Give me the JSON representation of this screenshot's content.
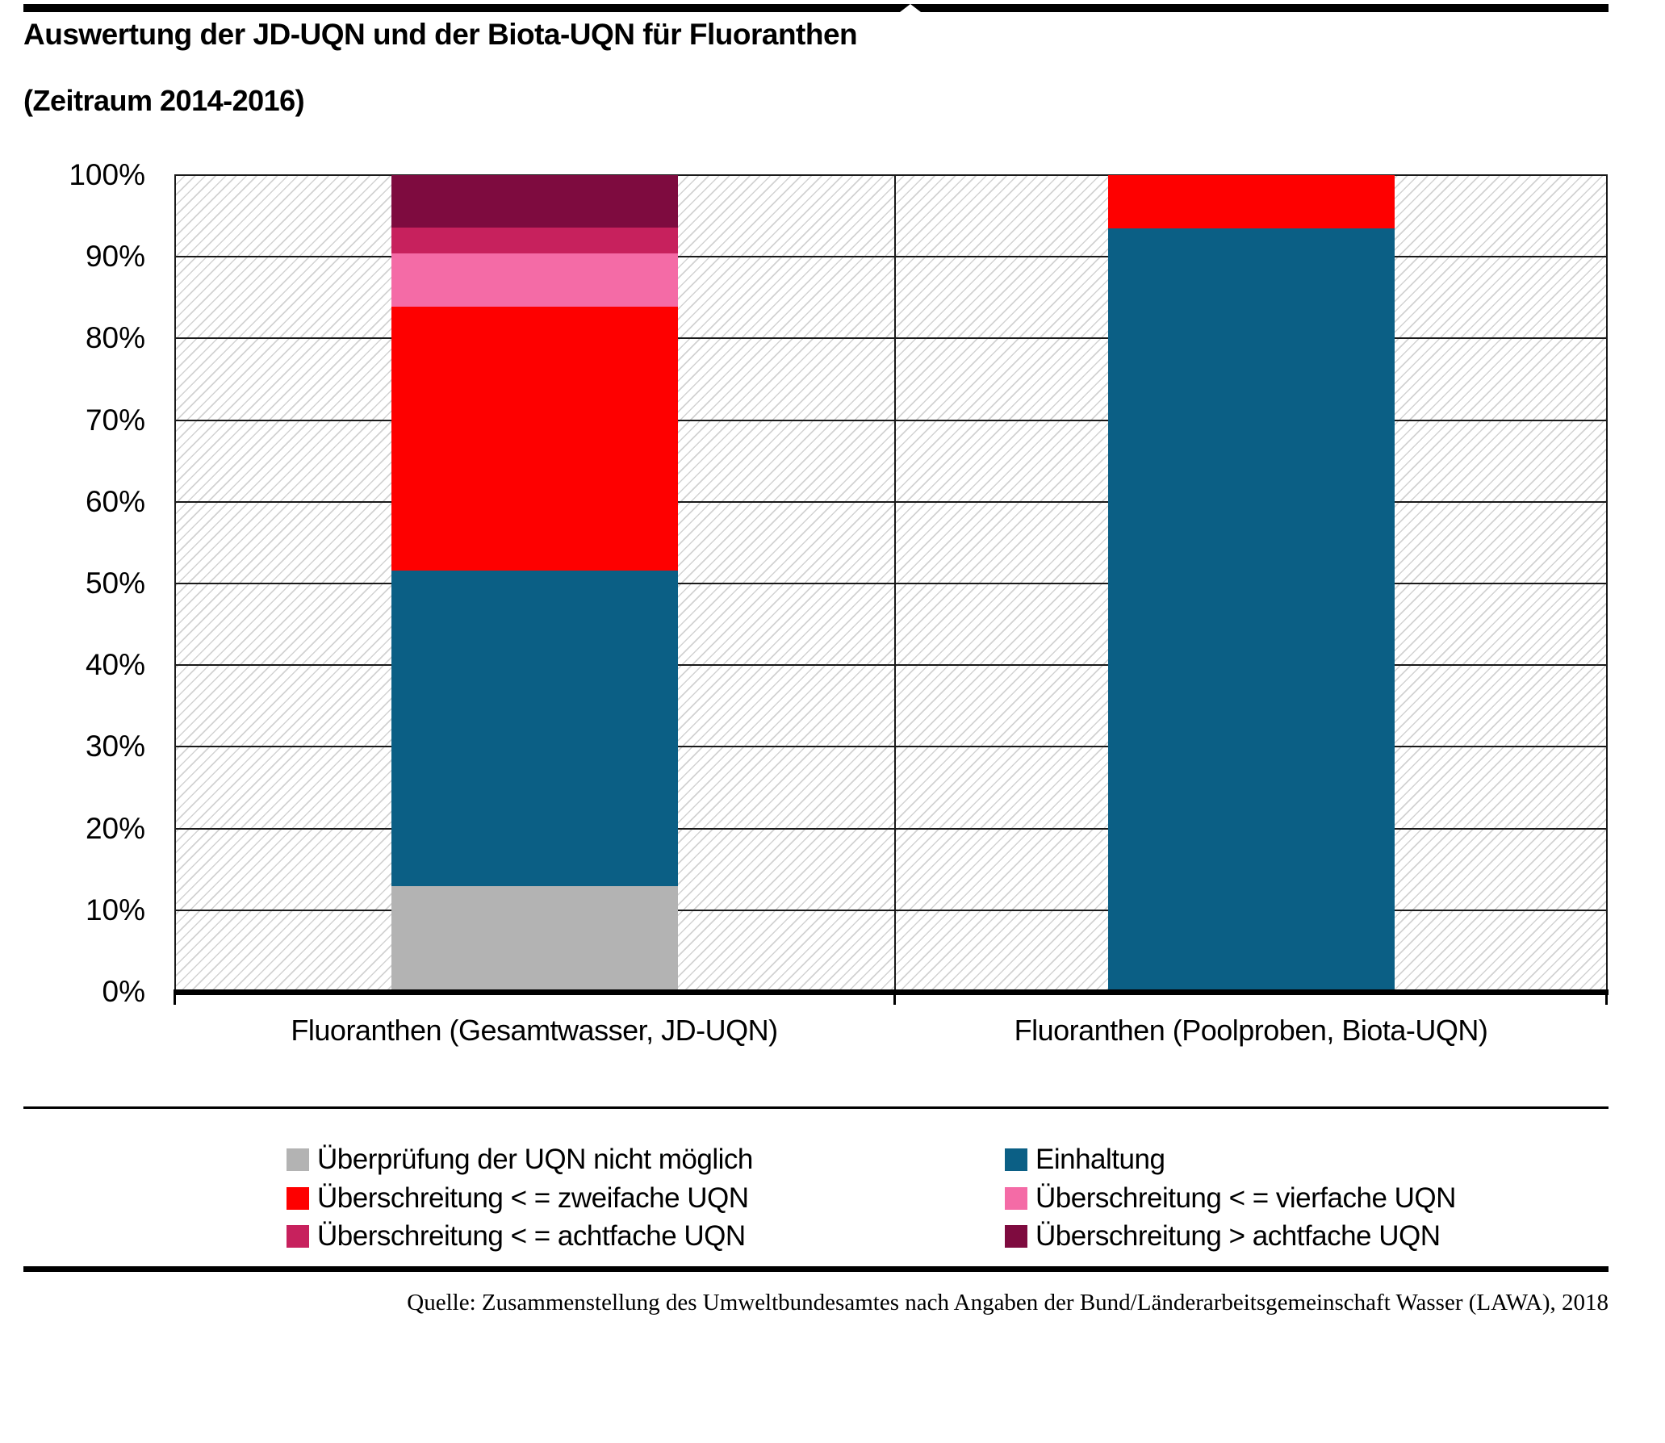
{
  "header": {
    "title": "Auswertung der JD-UQN und der Biota-UQN für Fluoranthen",
    "subtitle": "(Zeitraum 2014-2016)"
  },
  "chart_data": {
    "type": "bar",
    "stacked": true,
    "unit": "%",
    "title": "Auswertung der JD-UQN und der Biota-UQN für Fluoranthen (Zeitraum 2014-2016)",
    "categories": [
      "Fluoranthen (Gesamtwasser, JD-UQN)",
      "Fluoranthen (Poolproben, Biota-UQN)"
    ],
    "series": [
      {
        "name": "Überprüfung der UQN nicht möglich",
        "color": "#b3b3b3",
        "values": [
          12.9,
          0
        ]
      },
      {
        "name": "Einhaltung",
        "color": "#0b5f85",
        "values": [
          38.7,
          93.5
        ]
      },
      {
        "name": "Überschreitung < = zweifache UQN",
        "color": "#fe0000",
        "values": [
          32.3,
          6.5
        ]
      },
      {
        "name": "Überschreitung < = vierfache UQN",
        "color": "#f46ba6",
        "values": [
          6.5,
          0
        ]
      },
      {
        "name": "Überschreitung < = achtfache UQN",
        "color": "#c7215d",
        "values": [
          3.2,
          0
        ]
      },
      {
        "name": "Überschreitung > achtfache UQN",
        "color": "#7e0b3f",
        "values": [
          6.4,
          0
        ]
      }
    ],
    "y_ticks": [
      "100%",
      "90%",
      "80%",
      "70%",
      "60%",
      "50%",
      "40%",
      "30%",
      "20%",
      "10%",
      "0%"
    ],
    "ylim": [
      0,
      100
    ],
    "grid": "horizontal-every-10-percent",
    "background_pattern": "diagonal-hatch",
    "legend_position": "bottom"
  },
  "legend": {
    "left_items": [
      0,
      2,
      4
    ],
    "right_items": [
      1,
      3,
      5
    ]
  },
  "footer": {
    "source": "Quelle: Zusammenstellung des Umweltbundesamtes nach Angaben der Bund/Länderarbeitsgemeinschaft Wasser (LAWA), 2018"
  }
}
